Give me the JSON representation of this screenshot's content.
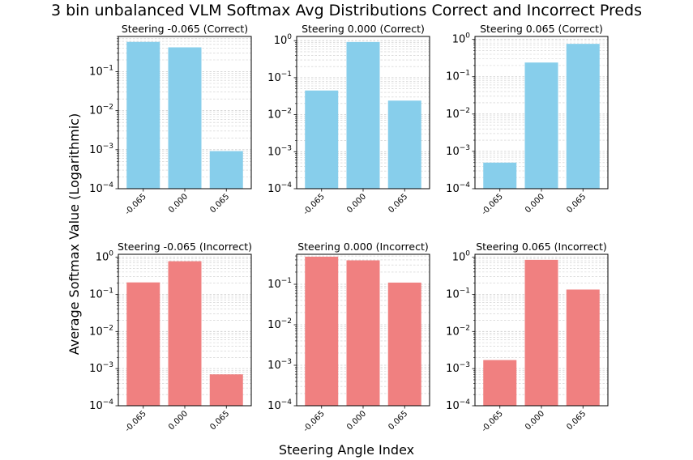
{
  "figure": {
    "suptitle": "3 bin unbalanced VLM Softmax Avg Distributions Correct and Incorrect Preds",
    "xlabel": "Steering Angle Index",
    "ylabel": "Average Softmax Value (Logarithmic)"
  },
  "colors": {
    "correct": "#87ceeb",
    "incorrect": "#f08080",
    "grid": "#cccccc"
  },
  "chart_data": [
    {
      "type": "bar",
      "title": "Steering -0.065 (Correct)",
      "categories": [
        "-0.065",
        "0.000",
        "0.065"
      ],
      "values": [
        0.58,
        0.42,
        0.00092
      ],
      "yscale": "log",
      "ylim": [
        0.0001,
        0.8
      ],
      "color": "#87ceeb",
      "grid": true
    },
    {
      "type": "bar",
      "title": "Steering 0.000 (Correct)",
      "categories": [
        "-0.065",
        "0.000",
        "0.065"
      ],
      "values": [
        0.045,
        0.92,
        0.024
      ],
      "yscale": "log",
      "ylim": [
        0.0001,
        1.3
      ],
      "color": "#87ceeb",
      "grid": true
    },
    {
      "type": "bar",
      "title": "Steering 0.065 (Correct)",
      "categories": [
        "-0.065",
        "0.000",
        "0.065"
      ],
      "values": [
        0.0005,
        0.24,
        0.76
      ],
      "yscale": "log",
      "ylim": [
        0.0001,
        1.2
      ],
      "color": "#87ceeb",
      "grid": true
    },
    {
      "type": "bar",
      "title": "Steering -0.065 (Incorrect)",
      "categories": [
        "-0.065",
        "0.000",
        "0.065"
      ],
      "values": [
        0.21,
        0.78,
        0.0007
      ],
      "yscale": "log",
      "ylim": [
        0.0001,
        1.2
      ],
      "color": "#f08080",
      "grid": true
    },
    {
      "type": "bar",
      "title": "Steering 0.000 (Incorrect)",
      "categories": [
        "-0.065",
        "0.000",
        "0.065"
      ],
      "values": [
        0.48,
        0.39,
        0.11
      ],
      "yscale": "log",
      "ylim": [
        0.0001,
        0.55
      ],
      "color": "#f08080",
      "grid": true
    },
    {
      "type": "bar",
      "title": "Steering 0.065 (Incorrect)",
      "categories": [
        "-0.065",
        "0.000",
        "0.065"
      ],
      "values": [
        0.0017,
        0.85,
        0.135
      ],
      "yscale": "log",
      "ylim": [
        0.0001,
        1.2
      ],
      "color": "#f08080",
      "grid": true
    }
  ]
}
